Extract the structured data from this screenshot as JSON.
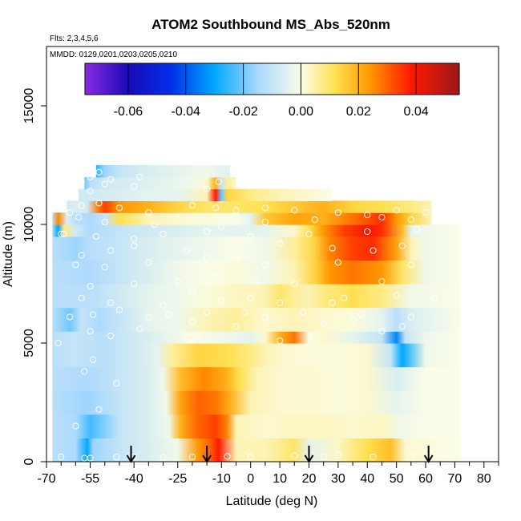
{
  "chart_data": {
    "type": "heatmap",
    "title": "ATOM2 Southbound MS_Abs_520nm",
    "annotations": {
      "flights": "Flts: 2,3,4,5,6",
      "dates": "MMDD: 0129,0201,0203,0205,0210"
    },
    "xlabel": "Latitude (deg N)",
    "ylabel": "Altitude (m)",
    "xlim": [
      -70,
      85
    ],
    "ylim": [
      0,
      17500
    ],
    "xticks": [
      -70,
      -55,
      -40,
      -25,
      -10,
      0,
      10,
      20,
      30,
      40,
      50,
      60,
      70,
      80
    ],
    "xtick_labels": [
      "-70",
      "-55",
      "-40",
      "-25",
      "-10",
      "0",
      "10",
      "20",
      "30",
      "40",
      "50",
      "60",
      "70",
      "80"
    ],
    "xticks_minor": [
      -65,
      -60,
      -50,
      -45,
      -35,
      -30,
      -20,
      -15,
      -5,
      5,
      15,
      25,
      35,
      45,
      55,
      65,
      75,
      85
    ],
    "yticks": [
      0,
      5000,
      10000,
      15000
    ],
    "ytick_labels": [
      "0",
      "5000",
      "10000",
      "15000"
    ],
    "colorbar": {
      "range": [
        -0.075,
        0.055
      ],
      "ticks": [
        -0.06,
        -0.04,
        -0.02,
        0.0,
        0.02,
        0.04
      ],
      "tick_labels": [
        "-0.06",
        "-0.04",
        "-0.02",
        "0.00",
        "0.02",
        "0.04"
      ],
      "stops": [
        {
          "v": -0.075,
          "c": "#8a2be2"
        },
        {
          "v": -0.06,
          "c": "#1a0ab8"
        },
        {
          "v": -0.045,
          "c": "#0030e8"
        },
        {
          "v": -0.03,
          "c": "#00a8ff"
        },
        {
          "v": -0.015,
          "c": "#a8d8ff"
        },
        {
          "v": 0.0,
          "c": "#fbfde8"
        },
        {
          "v": 0.012,
          "c": "#ffe050"
        },
        {
          "v": 0.024,
          "c": "#ff9800"
        },
        {
          "v": 0.038,
          "c": "#ff1a00"
        },
        {
          "v": 0.055,
          "c": "#9a1818"
        }
      ]
    },
    "arrows_latitude": [
      -41,
      -15,
      20,
      61
    ],
    "layers": [
      {
        "alt": [
          0,
          1000
        ],
        "x": [
          -68,
          -60,
          -56,
          -54,
          -45,
          -35,
          -25,
          -18,
          -14,
          -11,
          -5,
          5,
          15,
          20,
          30,
          40,
          48,
          53,
          60,
          72
        ],
        "v": [
          -0.012,
          -0.014,
          -0.03,
          -0.016,
          -0.01,
          -0.006,
          -0.002,
          0.024,
          0.03,
          0.038,
          0.004,
          0.004,
          0.01,
          -0.004,
          0.003,
          0.012,
          0.018,
          0.002,
          0.001,
          0.0
        ]
      },
      {
        "alt": [
          1000,
          2000
        ],
        "x": [
          -68,
          -60,
          -55,
          -45,
          -35,
          -28,
          -24,
          -18,
          -12,
          -8,
          -5,
          5,
          15,
          25,
          35,
          45,
          52,
          60,
          72
        ],
        "v": [
          -0.012,
          -0.014,
          -0.024,
          -0.01,
          -0.006,
          -0.002,
          0.02,
          0.03,
          0.034,
          0.026,
          0.004,
          0.002,
          0.003,
          0.003,
          0.002,
          0.003,
          -0.002,
          0.0,
          0.0
        ]
      },
      {
        "alt": [
          2000,
          3000
        ],
        "x": [
          -68,
          -56,
          -45,
          -35,
          -29,
          -24,
          -18,
          -12,
          -7,
          0,
          10,
          20,
          30,
          40,
          50,
          60,
          72
        ],
        "v": [
          -0.012,
          -0.016,
          -0.01,
          -0.006,
          -0.002,
          0.022,
          0.03,
          0.028,
          0.02,
          0.004,
          0.002,
          0.002,
          0.001,
          0.002,
          -0.004,
          0.0,
          0.0
        ]
      },
      {
        "alt": [
          3000,
          4000
        ],
        "x": [
          -68,
          -56,
          -45,
          -35,
          -30,
          -24,
          -16,
          -8,
          -4,
          2,
          10,
          20,
          30,
          40,
          50,
          60,
          72
        ],
        "v": [
          -0.012,
          -0.014,
          -0.01,
          -0.006,
          -0.002,
          0.018,
          0.026,
          0.02,
          0.012,
          0.004,
          0.002,
          0.002,
          0.001,
          0.002,
          -0.006,
          0.0,
          0.0
        ]
      },
      {
        "alt": [
          4000,
          5000
        ],
        "x": [
          -68,
          -60,
          -50,
          -40,
          -32,
          -27,
          -18,
          -8,
          0,
          5,
          12,
          20,
          30,
          40,
          48,
          52,
          60,
          72
        ],
        "v": [
          -0.012,
          -0.01,
          -0.012,
          -0.008,
          -0.004,
          0.006,
          0.014,
          0.012,
          0.008,
          0.004,
          0.002,
          0.001,
          0.001,
          0.002,
          -0.01,
          -0.03,
          -0.002,
          0.0
        ]
      },
      {
        "alt": [
          5000,
          5500
        ],
        "x": [
          -68,
          -60,
          -50,
          -40,
          -30,
          -20,
          -10,
          0,
          5,
          10,
          15,
          20,
          25,
          35,
          45,
          50,
          53,
          60,
          72
        ],
        "v": [
          -0.012,
          -0.01,
          -0.012,
          -0.008,
          -0.004,
          0.0,
          -0.002,
          -0.004,
          0.002,
          0.02,
          0.028,
          0.0,
          0.002,
          -0.004,
          -0.01,
          -0.034,
          -0.01,
          -0.002,
          0.0
        ]
      },
      {
        "alt": [
          5500,
          6500
        ],
        "x": [
          -68,
          -62,
          -58,
          -52,
          -45,
          -35,
          -25,
          -15,
          -5,
          5,
          15,
          25,
          35,
          45,
          50,
          55,
          72
        ],
        "v": [
          -0.012,
          -0.02,
          -0.01,
          -0.014,
          -0.01,
          -0.004,
          -0.002,
          0.004,
          0.006,
          0.002,
          0.004,
          0.002,
          0.001,
          -0.004,
          -0.012,
          -0.006,
          0.0
        ]
      },
      {
        "alt": [
          6500,
          7500
        ],
        "x": [
          -68,
          -55,
          -45,
          -35,
          -25,
          -15,
          -5,
          5,
          10,
          15,
          20,
          25,
          35,
          45,
          55,
          72
        ],
        "v": [
          -0.012,
          -0.012,
          -0.008,
          -0.004,
          -0.002,
          0.001,
          0.003,
          0.004,
          0.01,
          0.006,
          0.004,
          0.008,
          0.012,
          0.008,
          -0.002,
          0.0
        ]
      },
      {
        "alt": [
          7500,
          8500
        ],
        "x": [
          -68,
          -55,
          -45,
          -35,
          -25,
          -15,
          -5,
          5,
          15,
          22,
          27,
          35,
          45,
          52,
          60,
          72
        ],
        "v": [
          -0.012,
          -0.014,
          -0.01,
          -0.006,
          -0.002,
          0.0,
          0.001,
          -0.002,
          0.004,
          0.014,
          0.024,
          0.028,
          0.024,
          0.01,
          -0.002,
          0.0
        ]
      },
      {
        "alt": [
          8500,
          9500
        ],
        "x": [
          -68,
          -60,
          -55,
          -45,
          -35,
          -25,
          -15,
          -5,
          5,
          15,
          22,
          27,
          35,
          42,
          50,
          55,
          60,
          72
        ],
        "v": [
          -0.012,
          -0.016,
          -0.012,
          -0.01,
          -0.006,
          -0.004,
          -0.002,
          0.0,
          -0.002,
          0.006,
          0.014,
          0.026,
          0.034,
          0.036,
          0.022,
          0.004,
          -0.002,
          0.0
        ]
      },
      {
        "alt": [
          9500,
          10000
        ],
        "x": [
          -68,
          -66,
          -64,
          -60,
          -55,
          -45,
          -35,
          -25,
          -15,
          -5,
          5,
          15,
          20,
          25,
          32,
          40,
          45,
          52,
          55,
          60,
          72
        ],
        "v": [
          -0.014,
          -0.03,
          0.008,
          -0.008,
          -0.014,
          -0.01,
          -0.008,
          -0.006,
          -0.004,
          -0.004,
          -0.004,
          0.002,
          0.012,
          0.024,
          0.034,
          0.04,
          0.036,
          0.018,
          -0.004,
          -0.002,
          0.0
        ]
      },
      {
        "alt": [
          10000,
          10500
        ],
        "x": [
          -68,
          -66,
          -63,
          -60,
          -55,
          -50,
          -45,
          -35,
          -25,
          -15,
          -5,
          0,
          5,
          15,
          25,
          35,
          45,
          50,
          55,
          62
        ],
        "v": [
          -0.012,
          0.026,
          -0.006,
          -0.012,
          -0.014,
          -0.01,
          0.012,
          0.004,
          0.002,
          0.001,
          0.0,
          -0.004,
          0.016,
          0.022,
          0.02,
          0.028,
          0.036,
          0.024,
          0.014,
          0.004
        ]
      },
      {
        "alt": [
          10500,
          11000
        ],
        "x": [
          -63,
          -60,
          -56,
          -52,
          -50,
          -45,
          -35,
          -25,
          -15,
          -5,
          5,
          15,
          25,
          35,
          45,
          50,
          55,
          62
        ],
        "v": [
          -0.008,
          -0.006,
          -0.008,
          0.028,
          0.034,
          0.024,
          0.02,
          0.014,
          0.01,
          0.01,
          0.012,
          0.016,
          0.02,
          0.014,
          0.012,
          0.01,
          0.008,
          0.004
        ]
      },
      {
        "alt": [
          11000,
          11500
        ],
        "x": [
          -59,
          -55,
          -45,
          -35,
          -25,
          -15,
          -12,
          -10,
          -8,
          0,
          10,
          20,
          28
        ],
        "v": [
          -0.008,
          -0.008,
          -0.006,
          -0.004,
          -0.004,
          0.004,
          0.038,
          -0.02,
          0.014,
          0.008,
          0.004,
          0.002,
          0.0
        ]
      },
      {
        "alt": [
          11500,
          12000
        ],
        "x": [
          -57,
          -55,
          -50,
          -40,
          -30,
          -20,
          -15,
          -12,
          -10,
          -8,
          -5
        ],
        "v": [
          -0.02,
          -0.012,
          -0.008,
          -0.006,
          -0.004,
          -0.002,
          0.002,
          0.02,
          -0.01,
          0.006,
          0.003
        ]
      },
      {
        "alt": [
          12000,
          12500
        ],
        "x": [
          -53,
          -50,
          -45,
          -35,
          -25,
          -15,
          -10,
          -7
        ],
        "v": [
          -0.026,
          -0.016,
          -0.01,
          -0.006,
          -0.004,
          -0.002,
          -0.004,
          -0.004
        ]
      }
    ],
    "observations": [
      [
        -65,
        200
      ],
      [
        -57,
        150
      ],
      [
        -55,
        150
      ],
      [
        -46,
        200
      ],
      [
        -40,
        200
      ],
      [
        -30,
        180
      ],
      [
        -20,
        200
      ],
      [
        -8,
        220
      ],
      [
        0,
        200
      ],
      [
        15,
        250
      ],
      [
        25,
        200
      ],
      [
        30,
        300
      ],
      [
        42,
        200
      ],
      [
        55,
        200
      ],
      [
        65,
        250
      ],
      [
        -60,
        1500
      ],
      [
        -52,
        2200
      ],
      [
        -57,
        3800
      ],
      [
        -54,
        4300
      ],
      [
        -46,
        3300
      ],
      [
        -66,
        5000
      ],
      [
        -55,
        5500
      ],
      [
        -48,
        5300
      ],
      [
        -38,
        5600
      ],
      [
        -20,
        5900
      ],
      [
        -5,
        5700
      ],
      [
        10,
        5100
      ],
      [
        25,
        5800
      ],
      [
        35,
        6000
      ],
      [
        45,
        5500
      ],
      [
        52,
        5700
      ],
      [
        -62,
        6100
      ],
      [
        -54,
        6200
      ],
      [
        -45,
        6400
      ],
      [
        -35,
        6100
      ],
      [
        -28,
        6200
      ],
      [
        -15,
        6300
      ],
      [
        -2,
        6300
      ],
      [
        5,
        6100
      ],
      [
        18,
        6300
      ],
      [
        28,
        6700
      ],
      [
        38,
        6200
      ],
      [
        55,
        6100
      ],
      [
        -58,
        6900
      ],
      [
        -48,
        6700
      ],
      [
        -30,
        6600
      ],
      [
        -20,
        7200
      ],
      [
        -10,
        6800
      ],
      [
        0,
        6900
      ],
      [
        10,
        6700
      ],
      [
        32,
        6900
      ],
      [
        50,
        7000
      ],
      [
        63,
        6900
      ],
      [
        -55,
        7400
      ],
      [
        -40,
        7500
      ],
      [
        -25,
        7600
      ],
      [
        -12,
        7800
      ],
      [
        2,
        7600
      ],
      [
        15,
        7500
      ],
      [
        45,
        7600
      ],
      [
        -60,
        8300
      ],
      [
        -50,
        8200
      ],
      [
        -35,
        8400
      ],
      [
        -15,
        8600
      ],
      [
        5,
        8300
      ],
      [
        30,
        8400
      ],
      [
        55,
        8300
      ],
      [
        -58,
        8700
      ],
      [
        -48,
        8900
      ],
      [
        -40,
        9100
      ],
      [
        -22,
        8900
      ],
      [
        -5,
        8600
      ],
      [
        10,
        9200
      ],
      [
        28,
        9000
      ],
      [
        42,
        8900
      ],
      [
        52,
        9100
      ],
      [
        -64,
        9600
      ],
      [
        -53,
        9500
      ],
      [
        -40,
        9400
      ],
      [
        -30,
        9600
      ],
      [
        -15,
        9700
      ],
      [
        0,
        9500
      ],
      [
        20,
        9600
      ],
      [
        40,
        9700
      ],
      [
        57,
        9800
      ],
      [
        -65,
        9600
      ],
      [
        -59,
        10300
      ],
      [
        -50,
        10100
      ],
      [
        -33,
        10000
      ],
      [
        -10,
        9900
      ],
      [
        5,
        10100
      ],
      [
        22,
        10200
      ],
      [
        45,
        10300
      ],
      [
        55,
        10200
      ],
      [
        -62,
        10500
      ],
      [
        -58,
        10800
      ],
      [
        -52,
        10900
      ],
      [
        -45,
        10700
      ],
      [
        -35,
        10500
      ],
      [
        -20,
        10800
      ],
      [
        -12,
        10700
      ],
      [
        -5,
        10600
      ],
      [
        5,
        10700
      ],
      [
        15,
        10600
      ],
      [
        30,
        10500
      ],
      [
        40,
        10400
      ],
      [
        50,
        10600
      ],
      [
        60,
        10500
      ],
      [
        -55,
        11400
      ],
      [
        -50,
        11700
      ],
      [
        -40,
        11600
      ],
      [
        -15,
        11500
      ],
      [
        -11,
        11800
      ],
      [
        -58,
        11800
      ],
      [
        -55,
        12000
      ],
      [
        -52,
        12200
      ],
      [
        -48,
        11900
      ],
      [
        -38,
        12000
      ]
    ]
  }
}
